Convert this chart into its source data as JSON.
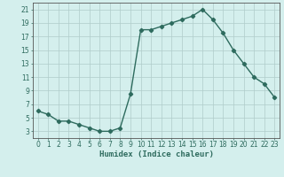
{
  "x": [
    0,
    1,
    2,
    3,
    4,
    5,
    6,
    7,
    8,
    9,
    10,
    11,
    12,
    13,
    14,
    15,
    16,
    17,
    18,
    19,
    20,
    21,
    22,
    23
  ],
  "y": [
    6,
    5.5,
    4.5,
    4.5,
    4,
    3.5,
    3,
    3,
    3.5,
    8.5,
    18,
    18,
    18.5,
    19,
    19.5,
    20,
    21,
    19.5,
    17.5,
    15,
    13,
    11,
    10,
    8
  ],
  "line_color": "#2e6b5e",
  "bg_color": "#d4efed",
  "grid_color": "#b0ccca",
  "xlabel": "Humidex (Indice chaleur)",
  "yticks": [
    3,
    5,
    7,
    9,
    11,
    13,
    15,
    17,
    19,
    21
  ],
  "xticks": [
    0,
    1,
    2,
    3,
    4,
    5,
    6,
    7,
    8,
    9,
    10,
    11,
    12,
    13,
    14,
    15,
    16,
    17,
    18,
    19,
    20,
    21,
    22,
    23
  ],
  "xlim": [
    -0.5,
    23.5
  ],
  "ylim": [
    2,
    22
  ],
  "xlabel_fontsize": 6.5,
  "tick_fontsize": 5.5
}
